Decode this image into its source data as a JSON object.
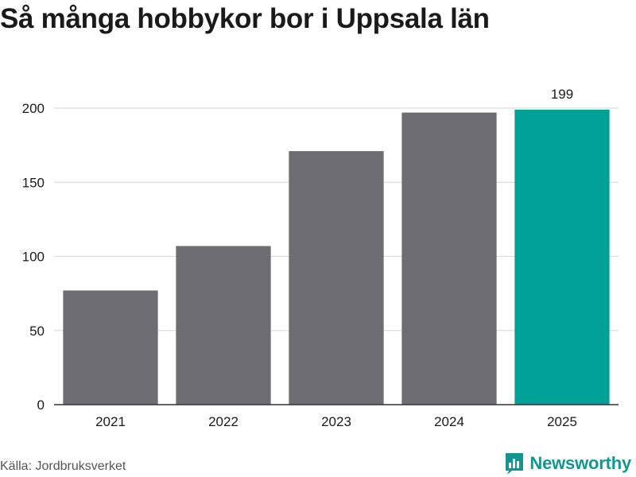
{
  "title": "Så många hobbykor bor i Uppsala län",
  "source": "Källa: Jordbruksverket",
  "brand": {
    "name": "Newsworthy",
    "icon": "newsworthy-logo-icon"
  },
  "colors": {
    "bar": "#6e6d73",
    "highlight": "#00a096",
    "grid": "#dddddd",
    "axis": "#333333",
    "brand": "#139690"
  },
  "chart_data": {
    "type": "bar",
    "categories": [
      "2021",
      "2022",
      "2023",
      "2024",
      "2025"
    ],
    "values": [
      77,
      107,
      171,
      197,
      199
    ],
    "highlight_index": 4,
    "data_labels": [
      null,
      null,
      null,
      null,
      "199"
    ],
    "title": "Så många hobbykor bor i Uppsala län",
    "xlabel": "",
    "ylabel": "",
    "ylim": [
      0,
      200
    ],
    "yticks": [
      0,
      50,
      100,
      150,
      200
    ],
    "grid": true,
    "legend": "none"
  }
}
